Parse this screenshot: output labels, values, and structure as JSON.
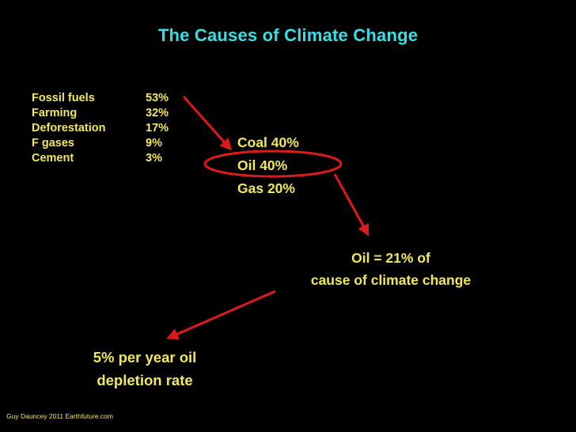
{
  "slide": {
    "title": "The Causes of Climate Change",
    "causes": [
      {
        "name": "Fossil fuels",
        "percent": "53%"
      },
      {
        "name": "Farming",
        "percent": "32%"
      },
      {
        "name": "Deforestation",
        "percent": "17%"
      },
      {
        "name": "F gases",
        "percent": "9%"
      },
      {
        "name": "Cement",
        "percent": "3%"
      }
    ],
    "fossil_breakdown": {
      "coal": "Coal 40%",
      "oil": "Oil 40%",
      "gas": "Gas 20%"
    },
    "oil_share": {
      "line1": "Oil = 21% of",
      "line2": "cause of climate change"
    },
    "depletion": {
      "line1": "5% per year oil",
      "line2": "depletion rate"
    },
    "footer": "Guy Dauncey 2011 Earthfuture.com"
  },
  "colors": {
    "background": "#000000",
    "title": "#33e0e8",
    "text": "#f2e85a",
    "annotation": "#e01a1a"
  }
}
